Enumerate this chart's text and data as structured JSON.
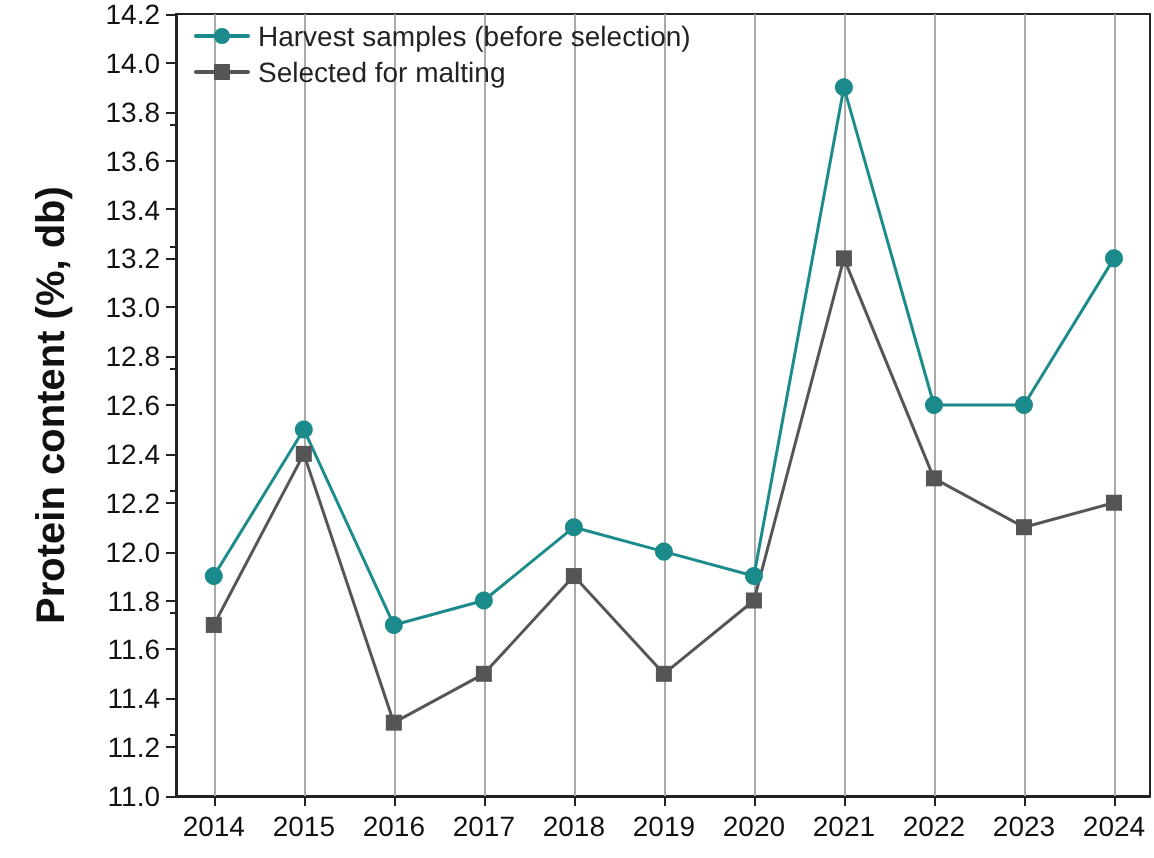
{
  "chart_data": {
    "type": "line",
    "ylabel": "Protein content (%, db)",
    "x": [
      2014,
      2015,
      2016,
      2017,
      2018,
      2019,
      2020,
      2021,
      2022,
      2023,
      2024
    ],
    "xlim": [
      2013.58,
      2024.4
    ],
    "xticks": [
      2014,
      2015,
      2016,
      2017,
      2018,
      2019,
      2020,
      2021,
      2022,
      2023,
      2024
    ],
    "ylim": [
      11.0,
      14.2
    ],
    "yticks": [
      {
        "value": 11.0,
        "label": "11.0"
      },
      {
        "value": 11.2,
        "label": "11.2"
      },
      {
        "value": 11.4,
        "label": "11.4"
      },
      {
        "value": 11.6,
        "label": "11.6"
      },
      {
        "value": 11.8,
        "label": "11.8"
      },
      {
        "value": 12.0,
        "label": "12.0"
      },
      {
        "value": 12.2,
        "label": "12.2"
      },
      {
        "value": 12.4,
        "label": "12.4"
      },
      {
        "value": 12.6,
        "label": "12.6"
      },
      {
        "value": 12.8,
        "label": "12.8"
      },
      {
        "value": 13.0,
        "label": "13.0"
      },
      {
        "value": 13.2,
        "label": "13.2"
      },
      {
        "value": 13.4,
        "label": "13.4"
      },
      {
        "value": 13.6,
        "label": "13.6"
      },
      {
        "value": 13.8,
        "label": "13.8"
      },
      {
        "value": 14.0,
        "label": "14.0"
      },
      {
        "value": 14.2,
        "label": "14.2"
      }
    ],
    "grid": "x",
    "legend": "top left",
    "line_style": "solid",
    "series": [
      {
        "name": "Harvest samples (before selection)",
        "color": "#1b8a8a",
        "marker": "circle",
        "values": [
          11.9,
          12.5,
          11.7,
          11.8,
          12.1,
          12.0,
          11.9,
          13.9,
          12.6,
          12.6,
          13.2
        ]
      },
      {
        "name": "Selected for malting",
        "color": "#555555",
        "marker": "square",
        "values": [
          11.7,
          12.4,
          11.3,
          11.5,
          11.9,
          11.5,
          11.8,
          13.2,
          12.3,
          12.1,
          12.2
        ]
      }
    ]
  }
}
